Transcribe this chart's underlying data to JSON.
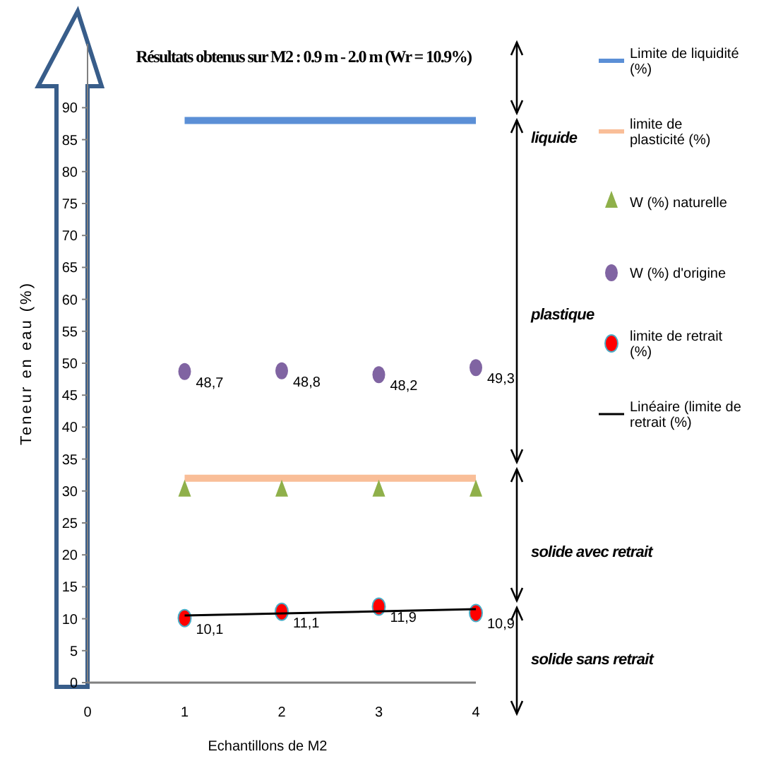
{
  "chart_data": {
    "type": "scatter",
    "title": "Résultats obtenus sur  M2 : 0.9 m - 2.0 m (Wr = 10.9%)",
    "xlabel": "Echantillons de M2",
    "ylabel": "Teneur en eau (%)",
    "x": [
      1,
      2,
      3,
      4
    ],
    "xlim": [
      0,
      4
    ],
    "xticks": [
      0,
      1,
      2,
      3,
      4
    ],
    "ylim": [
      0,
      100
    ],
    "yticks": [
      0,
      5,
      10,
      15,
      20,
      25,
      30,
      35,
      40,
      45,
      50,
      55,
      60,
      65,
      70,
      75,
      80,
      85,
      90
    ],
    "series": [
      {
        "name": "Limite de liquidité (%)",
        "type": "line",
        "color": "#5b8fd6",
        "marker": "none",
        "values": [
          88,
          88,
          88,
          88
        ]
      },
      {
        "name": "limite de plasticité (%)",
        "type": "line",
        "color": "#f9be98",
        "marker": "none",
        "values": [
          32,
          32,
          32,
          32
        ]
      },
      {
        "name": "W (%) naturelle",
        "color": "#8fb04a",
        "marker": "triangle",
        "values": [
          30,
          30,
          30,
          30
        ]
      },
      {
        "name": "W (%) d'origine",
        "color": "#8064a2",
        "marker": "circle",
        "values": [
          48.7,
          48.8,
          48.2,
          49.3
        ],
        "value_labels": [
          "48,7",
          "48,8",
          "48,2",
          "49,3"
        ]
      },
      {
        "name": "limite de retrait (%)",
        "color": "#ff0000",
        "marker": "circle",
        "values": [
          10.1,
          11.1,
          11.9,
          10.9
        ],
        "value_labels": [
          "10,1",
          "11,1",
          "11,9",
          "10,9"
        ]
      },
      {
        "name": "Linéaire (limite de retrait (%)",
        "type": "line",
        "color": "#000000",
        "marker": "none",
        "x": [
          1,
          4
        ],
        "values": [
          10.5,
          11.5
        ]
      }
    ],
    "annotations": [
      "liquide",
      "plastique",
      "solide avec retrait",
      "solide sans retrait"
    ],
    "grid": false,
    "legend": "right"
  }
}
